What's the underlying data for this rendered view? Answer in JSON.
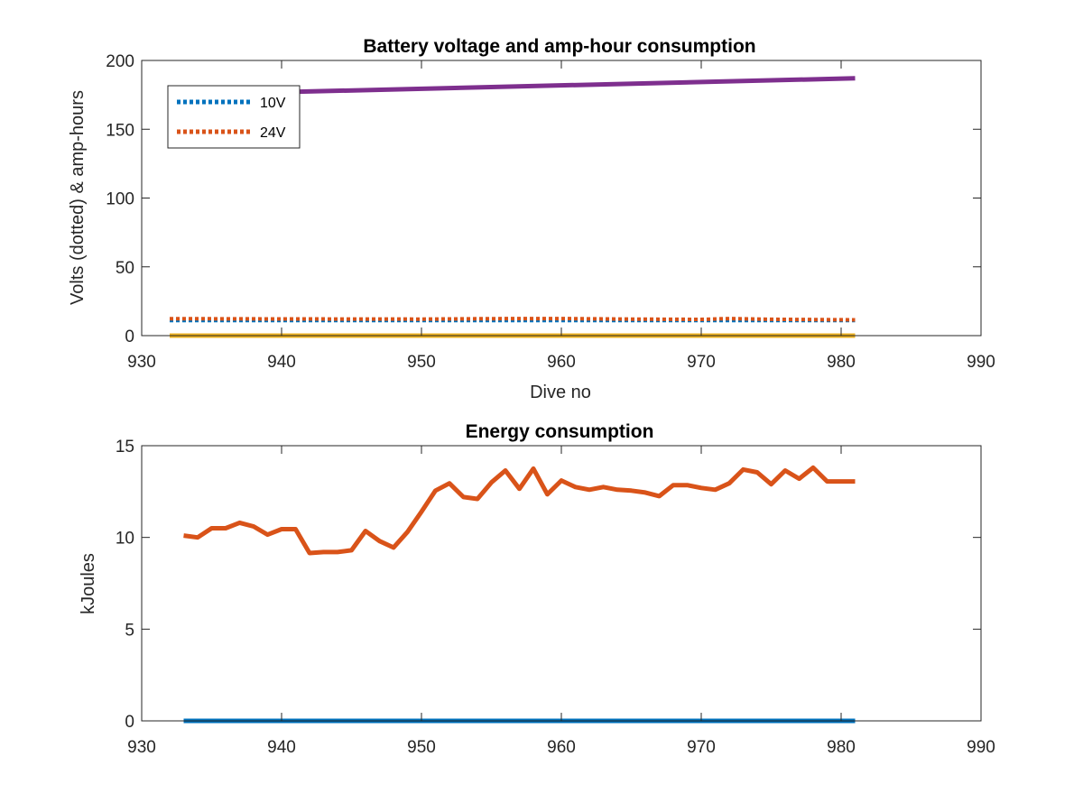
{
  "chart_data": [
    {
      "type": "line",
      "title": "Battery voltage and amp-hour consumption",
      "xlabel": "Dive no",
      "ylabel": "Volts (dotted) & amp-hours",
      "xlim": [
        930,
        990
      ],
      "ylim": [
        0,
        200
      ],
      "xticks": [
        930,
        940,
        950,
        960,
        970,
        980,
        990
      ],
      "yticks": [
        0,
        50,
        100,
        150,
        200
      ],
      "grid": false,
      "legend_placement": "top-left",
      "series": [
        {
          "name": "10V",
          "style": "dotted",
          "color": "#0072BD",
          "x": [
            932,
            981
          ],
          "y": [
            11.0,
            11.0
          ]
        },
        {
          "name": "24V",
          "style": "dotted",
          "color": "#D95319",
          "x": [
            932,
            940,
            950,
            955,
            960,
            965,
            970,
            972,
            975,
            981
          ],
          "y": [
            12.3,
            12.1,
            12.0,
            12.3,
            12.4,
            12.0,
            11.8,
            12.4,
            11.9,
            11.5
          ]
        },
        {
          "style": "solid",
          "color": "#EDB120",
          "x": [
            932,
            981
          ],
          "y": [
            0,
            0
          ]
        },
        {
          "style": "solid",
          "color": "#7E2F8E",
          "x": [
            932,
            981
          ],
          "y": [
            175,
            187
          ]
        }
      ]
    },
    {
      "type": "line",
      "title": "Energy consumption",
      "xlabel": "",
      "ylabel": "kJoules",
      "xlim": [
        930,
        990
      ],
      "ylim": [
        0,
        15
      ],
      "xticks": [
        930,
        940,
        950,
        960,
        970,
        980,
        990
      ],
      "yticks": [
        0,
        5,
        10,
        15
      ],
      "grid": false,
      "series": [
        {
          "style": "solid",
          "color": "#0072BD",
          "x": [
            933,
            981
          ],
          "y": [
            0,
            0
          ]
        },
        {
          "style": "solid",
          "color": "#D95319",
          "x": [
            933,
            934,
            935,
            936,
            937,
            938,
            939,
            940,
            941,
            942,
            943,
            944,
            945,
            946,
            947,
            948,
            949,
            950,
            951,
            952,
            953,
            954,
            955,
            956,
            957,
            958,
            959,
            960,
            961,
            962,
            963,
            964,
            965,
            966,
            967,
            968,
            969,
            970,
            971,
            972,
            973,
            974,
            975,
            976,
            977,
            978,
            979,
            980,
            981
          ],
          "y": [
            10.1,
            10.0,
            10.5,
            10.5,
            10.8,
            10.6,
            10.15,
            10.45,
            10.45,
            9.15,
            9.2,
            9.2,
            9.3,
            10.35,
            9.8,
            9.45,
            10.3,
            11.4,
            12.55,
            12.95,
            12.2,
            12.1,
            13.0,
            13.65,
            12.65,
            13.75,
            12.35,
            13.1,
            12.75,
            12.6,
            12.75,
            12.6,
            12.55,
            12.45,
            12.25,
            12.85,
            12.85,
            12.7,
            12.6,
            12.95,
            13.7,
            13.55,
            12.9,
            13.65,
            13.2,
            13.8,
            13.05,
            13.05,
            13.05
          ]
        }
      ]
    }
  ]
}
